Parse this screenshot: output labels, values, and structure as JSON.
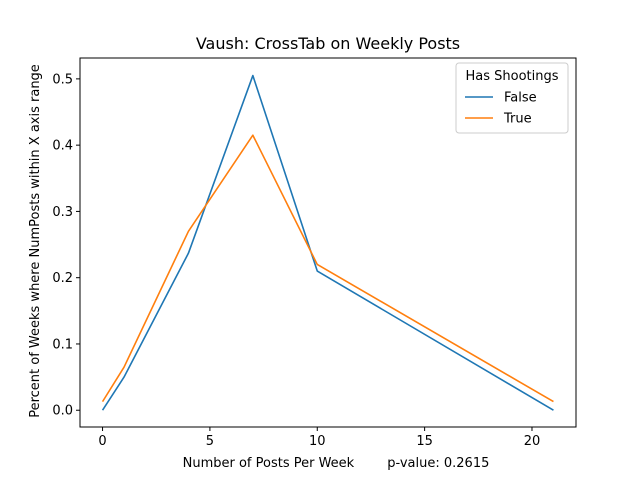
{
  "chart_data": {
    "type": "line",
    "title": "Vaush: CrossTab on Weekly Posts",
    "xlabel": "Number of Posts Per Week        p-value: 0.2615",
    "ylabel": "Percent of Weeks where NumPosts within X axis range",
    "x": [
      0,
      1,
      4,
      7,
      10,
      21
    ],
    "xlim": [
      -1.05,
      22.05
    ],
    "ylim": [
      -0.0253,
      0.5315
    ],
    "xticks": [
      "0",
      "5",
      "10",
      "15",
      "20"
    ],
    "yticks": [
      "0.0",
      "0.1",
      "0.2",
      "0.3",
      "0.4",
      "0.5"
    ],
    "grid": false,
    "legend": {
      "title": "Has Shootings",
      "position": "top-right"
    },
    "series": [
      {
        "name": "False",
        "color": "#1f77b4",
        "values": [
          0.0,
          0.05,
          0.237,
          0.505,
          0.21,
          0.0
        ]
      },
      {
        "name": "True",
        "color": "#ff7f0e",
        "values": [
          0.013,
          0.065,
          0.27,
          0.415,
          0.22,
          0.013
        ]
      }
    ]
  }
}
